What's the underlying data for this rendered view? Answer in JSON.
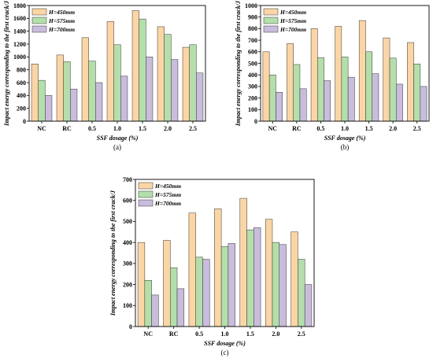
{
  "chart_data": [
    {
      "type": "bar",
      "caption": "(a)",
      "categories": [
        "NC",
        "RC",
        "0.5",
        "1.0",
        "1.5",
        "2.0",
        "2.5"
      ],
      "xlabel": "SSF dosage (%)",
      "ylabel": "Impact energy corresponding to the first crack/J",
      "ylim": [
        0,
        1800
      ],
      "yticks": [
        0,
        200,
        400,
        600,
        800,
        1000,
        1200,
        1400,
        1600,
        1800
      ],
      "legend_placement": "top-left",
      "series": [
        {
          "name": "H=450mm",
          "color": "#fcd5a5",
          "values": [
            890,
            1030,
            1300,
            1550,
            1720,
            1470,
            1150
          ]
        },
        {
          "name": "H=575mm",
          "color": "#b3e0aa",
          "values": [
            635,
            925,
            935,
            1190,
            1590,
            1350,
            1190
          ]
        },
        {
          "name": "H=700mm",
          "color": "#c9bcdd",
          "values": [
            400,
            500,
            600,
            700,
            1000,
            960,
            750
          ]
        }
      ]
    },
    {
      "type": "bar",
      "caption": "(b)",
      "categories": [
        "NC",
        "RC",
        "0.5",
        "1.0",
        "1.5",
        "2.0",
        "2.5"
      ],
      "xlabel": "SSF dosage (%)",
      "ylabel": "Impact energy corresponding to the first crack/J",
      "ylim": [
        0,
        1000
      ],
      "yticks": [
        0,
        100,
        200,
        300,
        400,
        500,
        600,
        700,
        800,
        900,
        1000
      ],
      "legend_placement": "top-left",
      "series": [
        {
          "name": "H=450mm",
          "color": "#fcd5a5",
          "values": [
            600,
            670,
            800,
            820,
            870,
            720,
            680
          ]
        },
        {
          "name": "H=575mm",
          "color": "#b3e0aa",
          "values": [
            400,
            490,
            550,
            555,
            600,
            545,
            495
          ]
        },
        {
          "name": "H=700mm",
          "color": "#c9bcdd",
          "values": [
            250,
            280,
            350,
            380,
            410,
            320,
            300
          ]
        }
      ]
    },
    {
      "type": "bar",
      "caption": "(c)",
      "categories": [
        "NC",
        "RC",
        "0.5",
        "1.0",
        "1.5",
        "2.0",
        "2.5"
      ],
      "xlabel": "SSF dosage (%)",
      "ylabel": "Impact energy corresponding to the first crack/J",
      "ylim": [
        0,
        700
      ],
      "yticks": [
        0,
        100,
        200,
        300,
        400,
        500,
        600,
        700
      ],
      "legend_placement": "top-left",
      "series": [
        {
          "name": "H=450mm",
          "color": "#fcd5a5",
          "values": [
            400,
            410,
            540,
            560,
            610,
            510,
            450
          ]
        },
        {
          "name": "H=575mm",
          "color": "#b3e0aa",
          "values": [
            220,
            280,
            330,
            380,
            460,
            400,
            320
          ]
        },
        {
          "name": "H=700mm",
          "color": "#c9bcdd",
          "values": [
            150,
            180,
            320,
            395,
            470,
            390,
            200
          ]
        }
      ]
    }
  ]
}
